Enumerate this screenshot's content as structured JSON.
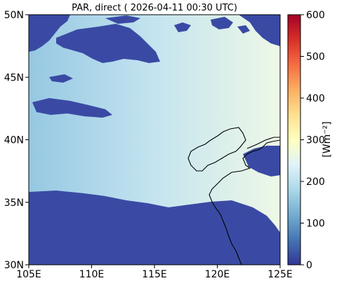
{
  "title": "PAR, direct ( 2026-04-11 00:30 UTC)",
  "map": {
    "lon_range": [
      105,
      125
    ],
    "lat_range": [
      30,
      50
    ],
    "x_ticks": [
      {
        "value": 105,
        "label": "105E"
      },
      {
        "value": 110,
        "label": "110E"
      },
      {
        "value": 115,
        "label": "115E"
      },
      {
        "value": 120,
        "label": "120E"
      },
      {
        "value": 125,
        "label": "125E"
      }
    ],
    "y_ticks": [
      {
        "value": 30,
        "label": "30N"
      },
      {
        "value": 35,
        "label": "35N"
      },
      {
        "value": 40,
        "label": "40N"
      },
      {
        "value": 45,
        "label": "45N"
      },
      {
        "value": 50,
        "label": "50N"
      }
    ],
    "colors": {
      "low": "#3a4aa4",
      "clear_west": "#96c8e2",
      "clear_mid": "#c4e4f0",
      "clear_east": "#eef8e6",
      "coastline": "#000000"
    }
  },
  "colorbar": {
    "label": "[Wm⁻²]",
    "range": [
      0,
      600
    ],
    "ticks": [
      {
        "value": 0,
        "label": "0"
      },
      {
        "value": 100,
        "label": "100"
      },
      {
        "value": 200,
        "label": "200"
      },
      {
        "value": 300,
        "label": "300"
      },
      {
        "value": 400,
        "label": "400"
      },
      {
        "value": 500,
        "label": "500"
      },
      {
        "value": 600,
        "label": "600"
      }
    ],
    "stops": [
      "#313695",
      "#4575b4",
      "#74add1",
      "#abd9e9",
      "#e0f3f8",
      "#ffffbf",
      "#fee090",
      "#fdae61",
      "#f46d43",
      "#d73027",
      "#a50026"
    ]
  }
}
